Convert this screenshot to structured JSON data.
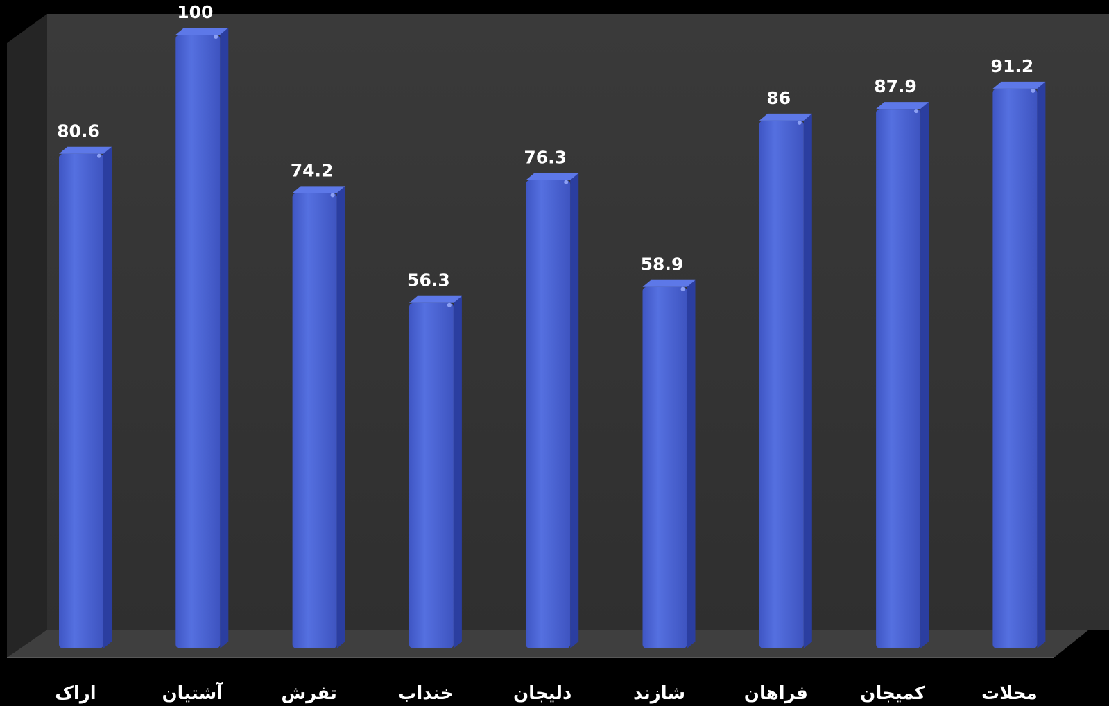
{
  "chart_data": {
    "type": "bar",
    "categories": [
      "اراک",
      "آشتیان",
      "تفرش",
      "خنداب",
      "دلیجان",
      "شازند",
      "فراهان",
      "کمیجان",
      "محلات"
    ],
    "values": [
      80.6,
      100,
      74.2,
      56.3,
      76.3,
      58.9,
      86,
      87.9,
      91.2
    ],
    "value_labels": [
      "80.6",
      "100",
      "74.2",
      "56.3",
      "76.3",
      "58.9",
      "86",
      "87.9",
      "91.2"
    ],
    "title": "",
    "xlabel": "",
    "ylabel": "",
    "ylim": [
      0,
      100
    ],
    "grid": false,
    "legend": "none",
    "bar_style": "3d-cylinder",
    "colors": {
      "bar_front": "#4a63d4",
      "bar_side": "#2b3ea0",
      "bar_top": "#5d78e8",
      "back_wall": "#353535",
      "side_wall": "#262626",
      "floor": "#3d3d3d",
      "background": "#000000",
      "text": "#ffffff"
    }
  }
}
